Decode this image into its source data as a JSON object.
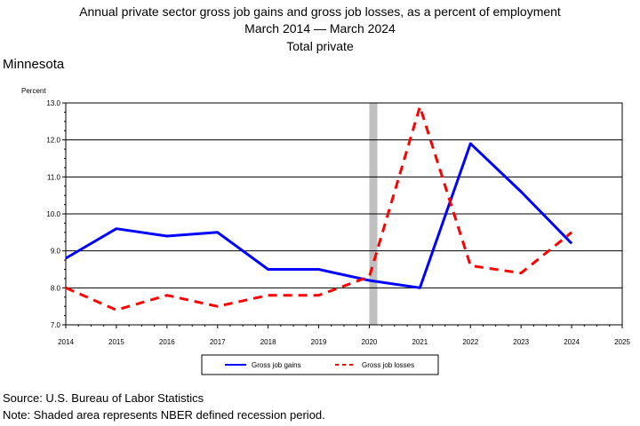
{
  "chart_data": {
    "type": "line",
    "title": "Annual private sector gross job gains and gross job losses, as a percent of employment",
    "subtitle": "March 2014 — March 2024",
    "subtitle2": "Total private",
    "region": "Minnesota",
    "ylabel": "Percent",
    "xlim": [
      2014,
      2025
    ],
    "ylim": [
      7.0,
      13.0
    ],
    "x_ticks": [
      "2014",
      "2015",
      "2016",
      "2017",
      "2018",
      "2019",
      "2020",
      "2021",
      "2022",
      "2023",
      "2024",
      "2025"
    ],
    "y_ticks": [
      "7.0",
      "8.0",
      "9.0",
      "10.0",
      "11.0",
      "12.0",
      "13.0"
    ],
    "grid": true,
    "legend": "bottom",
    "recession": [
      2020,
      2020.16
    ],
    "x": [
      2014,
      2015,
      2016,
      2017,
      2018,
      2019,
      2020,
      2021,
      2022,
      2023,
      2024
    ],
    "series": [
      {
        "name": "Gross job gains",
        "color": "#0000ff",
        "style": "solid",
        "values": [
          8.8,
          9.6,
          9.4,
          9.5,
          8.5,
          8.5,
          8.2,
          8.0,
          11.9,
          10.6,
          9.2
        ]
      },
      {
        "name": "Gross job losses",
        "color": "#ff0000",
        "style": "dashed",
        "values": [
          8.0,
          7.4,
          7.8,
          7.5,
          7.8,
          7.8,
          8.3,
          12.9,
          8.6,
          8.4,
          9.5
        ]
      }
    ]
  },
  "footer": {
    "source": "Source: U.S. Bureau of Labor Statistics",
    "note": "Note: Shaded area represents NBER defined recession period."
  },
  "colors": {
    "recession": "#c0c0c0",
    "grid": "#000000"
  }
}
